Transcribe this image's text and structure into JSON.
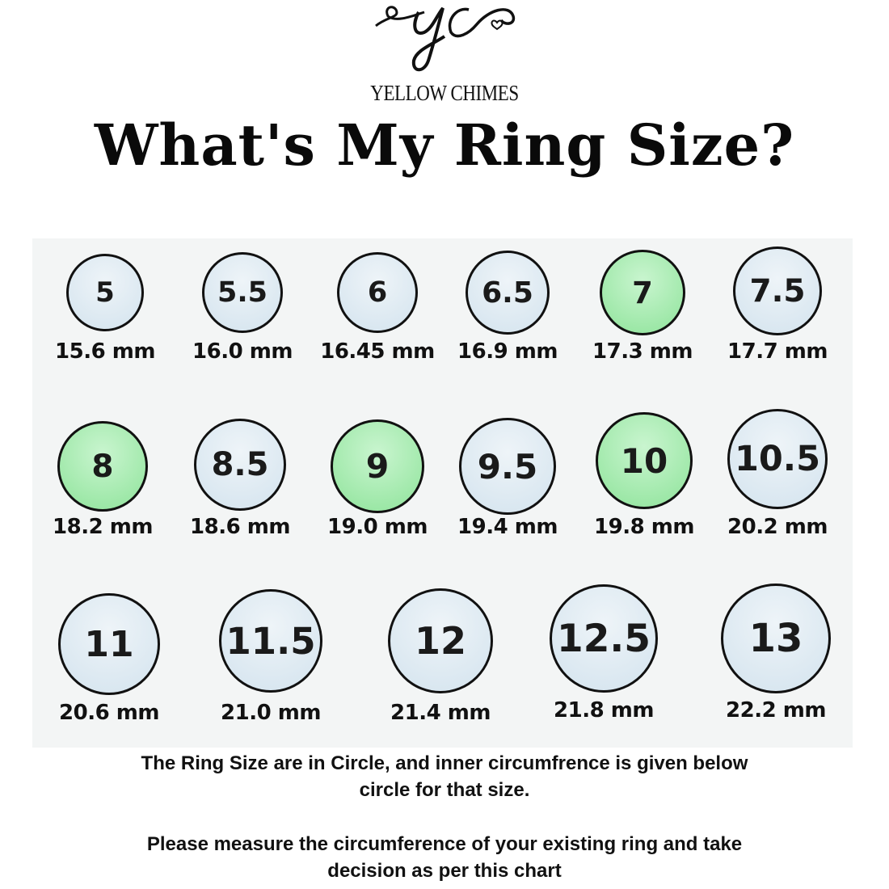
{
  "logo": {
    "monogram": "yc",
    "brand": "YELLOW CHIMES"
  },
  "title": "What's My Ring Size?",
  "colors": {
    "ring_fill": "#d3e3ee",
    "highlight_fill": "#8ee39a",
    "outline": "#111111"
  },
  "rings": [
    {
      "size": "5",
      "mm": "15.6 mm",
      "highlight": false
    },
    {
      "size": "5.5",
      "mm": "16.0 mm",
      "highlight": false
    },
    {
      "size": "6",
      "mm": "16.45 mm",
      "highlight": false
    },
    {
      "size": "6.5",
      "mm": "16.9 mm",
      "highlight": false
    },
    {
      "size": "7",
      "mm": "17.3 mm",
      "highlight": true
    },
    {
      "size": "7.5",
      "mm": "17.7 mm",
      "highlight": false
    },
    {
      "size": "8",
      "mm": "18.2 mm",
      "highlight": true
    },
    {
      "size": "8.5",
      "mm": "18.6 mm",
      "highlight": false
    },
    {
      "size": "9",
      "mm": "19.0 mm",
      "highlight": true
    },
    {
      "size": "9.5",
      "mm": "19.4 mm",
      "highlight": false
    },
    {
      "size": "10",
      "mm": "19.8 mm",
      "highlight": true
    },
    {
      "size": "10.5",
      "mm": "20.2 mm",
      "highlight": false
    },
    {
      "size": "11",
      "mm": "20.6 mm",
      "highlight": false
    },
    {
      "size": "11.5",
      "mm": "21.0 mm",
      "highlight": false
    },
    {
      "size": "12",
      "mm": "21.4 mm",
      "highlight": false
    },
    {
      "size": "12.5",
      "mm": "21.8 mm",
      "highlight": false
    },
    {
      "size": "13",
      "mm": "22.2 mm",
      "highlight": false
    }
  ],
  "notes": {
    "line1": "The Ring Size are in Circle, and inner circumfrence is  given below",
    "line2": "circle for that size.",
    "line3": "Please measure the circumference of your existing ring and take",
    "line4": "decision as per this chart"
  }
}
